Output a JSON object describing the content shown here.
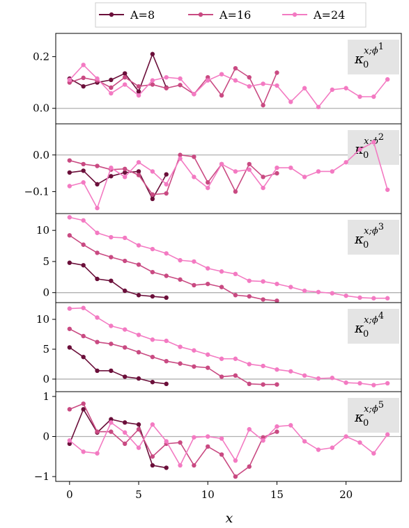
{
  "chart_data": {
    "type": "line",
    "xlabel": "x",
    "legend": {
      "placement": "top-center",
      "entries": [
        "A=8",
        "A=16",
        "A=24"
      ]
    },
    "x_ticks": [
      0,
      5,
      10,
      15,
      20
    ],
    "xlim": [
      -1,
      24
    ],
    "colors": {
      "A=8": "#6b0f3a",
      "A=16": "#c94a82",
      "A=24": "#f37ac2",
      "zero_line": "#b0b0b0",
      "label_box": "#e4e4e4"
    },
    "panels": [
      {
        "label": {
          "main": "κ",
          "sub": "0",
          "sup": "x;ϕ",
          "sup_index": "1"
        },
        "ylim": [
          -0.06,
          0.29
        ],
        "y_ticks": [
          0.0,
          0.2
        ],
        "y_tick_labels": [
          "0.0",
          "0.2"
        ],
        "series": [
          {
            "name": "A=8",
            "x": [
              0,
              1,
              2,
              3,
              4,
              5,
              6,
              7
            ],
            "y": [
              0.115,
              0.085,
              0.1,
              0.11,
              0.135,
              0.065,
              0.21,
              0.08
            ]
          },
          {
            "name": "A=16",
            "x": [
              0,
              1,
              2,
              3,
              4,
              5,
              6,
              7,
              8,
              9,
              10,
              11,
              12,
              13,
              14,
              15
            ],
            "y": [
              0.1,
              0.118,
              0.108,
              0.08,
              0.12,
              0.085,
              0.092,
              0.078,
              0.09,
              0.055,
              0.12,
              0.05,
              0.155,
              0.12,
              0.012,
              0.138
            ]
          },
          {
            "name": "A=24",
            "x": [
              0,
              1,
              2,
              3,
              4,
              5,
              6,
              7,
              8,
              9,
              10,
              11,
              12,
              13,
              14,
              15,
              16,
              17,
              18,
              19,
              20,
              21,
              22,
              23
            ],
            "y": [
              0.11,
              0.168,
              0.115,
              0.058,
              0.092,
              0.05,
              0.108,
              0.12,
              0.115,
              0.055,
              0.108,
              0.132,
              0.108,
              0.085,
              0.095,
              0.088,
              0.025,
              0.078,
              0.005,
              0.072,
              0.078,
              0.045,
              0.045,
              0.112
            ]
          }
        ]
      },
      {
        "label": {
          "main": "κ",
          "sub": "0",
          "sup": "x;ϕ",
          "sup_index": "2"
        },
        "ylim": [
          -0.16,
          0.085
        ],
        "y_ticks": [
          -0.1,
          0.0
        ],
        "y_tick_labels": [
          "−0.1",
          "0.0"
        ],
        "series": [
          {
            "name": "A=8",
            "x": [
              0,
              1,
              2,
              3,
              4,
              5,
              6,
              7
            ],
            "y": [
              -0.048,
              -0.043,
              -0.08,
              -0.058,
              -0.048,
              -0.045,
              -0.12,
              -0.053
            ]
          },
          {
            "name": "A=16",
            "x": [
              0,
              1,
              2,
              3,
              4,
              5,
              6,
              7,
              8,
              9,
              10,
              11,
              12,
              13,
              14,
              15
            ],
            "y": [
              -0.015,
              -0.025,
              -0.03,
              -0.04,
              -0.038,
              -0.055,
              -0.108,
              -0.105,
              0.0,
              -0.005,
              -0.075,
              -0.025,
              -0.1,
              -0.025,
              -0.06,
              -0.05
            ]
          },
          {
            "name": "A=24",
            "x": [
              0,
              1,
              2,
              3,
              4,
              5,
              6,
              7,
              8,
              9,
              10,
              11,
              12,
              13,
              14,
              15,
              16,
              17,
              18,
              19,
              20,
              21,
              22,
              23
            ],
            "y": [
              -0.085,
              -0.075,
              -0.145,
              -0.035,
              -0.06,
              -0.02,
              -0.045,
              -0.08,
              -0.01,
              -0.06,
              -0.09,
              -0.025,
              -0.045,
              -0.04,
              -0.09,
              -0.035,
              -0.035,
              -0.06,
              -0.045,
              -0.045,
              -0.02,
              0.015,
              0.035,
              -0.095
            ]
          }
        ]
      },
      {
        "label": {
          "main": "κ",
          "sub": "0",
          "sup": "x;ϕ",
          "sup_index": "3"
        },
        "ylim": [
          -1.6,
          12.7
        ],
        "y_ticks": [
          0,
          5,
          10
        ],
        "y_tick_labels": [
          "0",
          "5",
          "10"
        ],
        "series": [
          {
            "name": "A=8",
            "x": [
              0,
              1,
              2,
              3,
              4,
              5,
              6,
              7
            ],
            "y": [
              4.8,
              4.4,
              2.2,
              1.9,
              0.3,
              -0.4,
              -0.6,
              -0.8
            ]
          },
          {
            "name": "A=16",
            "x": [
              0,
              1,
              2,
              3,
              4,
              5,
              6,
              7,
              8,
              9,
              10,
              11,
              12,
              13,
              14,
              15
            ],
            "y": [
              9.2,
              7.7,
              6.4,
              5.7,
              5.1,
              4.5,
              3.3,
              2.7,
              2.1,
              1.2,
              1.4,
              0.9,
              -0.4,
              -0.6,
              -1.1,
              -1.3
            ]
          },
          {
            "name": "A=24",
            "x": [
              0,
              1,
              2,
              3,
              4,
              5,
              6,
              7,
              8,
              9,
              10,
              11,
              12,
              13,
              14,
              15,
              16,
              17,
              18,
              19,
              20,
              21,
              22,
              23
            ],
            "y": [
              12.1,
              11.6,
              9.6,
              8.9,
              8.8,
              7.6,
              7.0,
              6.3,
              5.2,
              5.0,
              3.9,
              3.4,
              3.0,
              1.9,
              1.8,
              1.4,
              0.9,
              0.3,
              0.1,
              -0.1,
              -0.5,
              -0.8,
              -0.9,
              -0.9
            ]
          }
        ]
      },
      {
        "label": {
          "main": "κ",
          "sub": "0",
          "sup": "x;ϕ",
          "sup_index": "4"
        },
        "ylim": [
          -2.1,
          12.8
        ],
        "y_ticks": [
          0,
          5,
          10
        ],
        "y_tick_labels": [
          "0",
          "5",
          "10"
        ],
        "series": [
          {
            "name": "A=8",
            "x": [
              0,
              1,
              2,
              3,
              4,
              5,
              6,
              7
            ],
            "y": [
              5.3,
              3.7,
              1.4,
              1.4,
              0.4,
              0.1,
              -0.5,
              -0.8
            ]
          },
          {
            "name": "A=16",
            "x": [
              0,
              1,
              2,
              3,
              4,
              5,
              6,
              7,
              8,
              9,
              10,
              11,
              12,
              13,
              14,
              15
            ],
            "y": [
              8.4,
              7.2,
              6.2,
              5.9,
              5.3,
              4.5,
              3.7,
              3.0,
              2.6,
              2.1,
              1.9,
              0.4,
              0.6,
              -0.8,
              -0.9,
              -0.9
            ]
          },
          {
            "name": "A=24",
            "x": [
              0,
              1,
              2,
              3,
              4,
              5,
              6,
              7,
              8,
              9,
              10,
              11,
              12,
              13,
              14,
              15,
              16,
              17,
              18,
              19,
              20,
              21,
              22,
              23
            ],
            "y": [
              11.8,
              11.9,
              10.3,
              8.9,
              8.3,
              7.4,
              6.6,
              6.4,
              5.4,
              4.8,
              4.1,
              3.4,
              3.4,
              2.5,
              2.2,
              1.6,
              1.3,
              0.6,
              0.1,
              0.2,
              -0.6,
              -0.7,
              -1.0,
              -0.7
            ]
          }
        ]
      },
      {
        "label": {
          "main": "κ",
          "sub": "0",
          "sup": "x;ϕ",
          "sup_index": "5"
        },
        "ylim": [
          -1.12,
          1.12
        ],
        "y_ticks": [
          -1,
          0,
          1
        ],
        "y_tick_labels": [
          "−1",
          "0",
          "1"
        ],
        "series": [
          {
            "name": "A=8",
            "x": [
              0,
              1,
              2,
              3,
              4,
              5,
              6,
              7
            ],
            "y": [
              -0.18,
              0.68,
              0.1,
              0.43,
              0.35,
              0.3,
              -0.72,
              -0.78
            ]
          },
          {
            "name": "A=16",
            "x": [
              0,
              1,
              2,
              3,
              4,
              5,
              6,
              7,
              8,
              9,
              10,
              11,
              12,
              13,
              14,
              15
            ],
            "y": [
              0.68,
              0.82,
              0.12,
              0.12,
              -0.18,
              0.18,
              -0.5,
              -0.18,
              -0.15,
              -0.72,
              -0.25,
              -0.45,
              -1.0,
              -0.75,
              -0.02,
              0.12
            ]
          },
          {
            "name": "A=24",
            "x": [
              0,
              1,
              2,
              3,
              4,
              5,
              6,
              7,
              8,
              9,
              10,
              11,
              12,
              13,
              14,
              15,
              16,
              17,
              18,
              19,
              20,
              21,
              22,
              23
            ],
            "y": [
              -0.1,
              -0.38,
              -0.42,
              0.35,
              0.1,
              -0.28,
              0.3,
              -0.12,
              -0.72,
              -0.02,
              0.0,
              -0.05,
              -0.6,
              0.18,
              -0.1,
              0.25,
              0.28,
              -0.12,
              -0.33,
              -0.28,
              0.0,
              -0.15,
              -0.42,
              0.05
            ]
          }
        ]
      }
    ]
  }
}
